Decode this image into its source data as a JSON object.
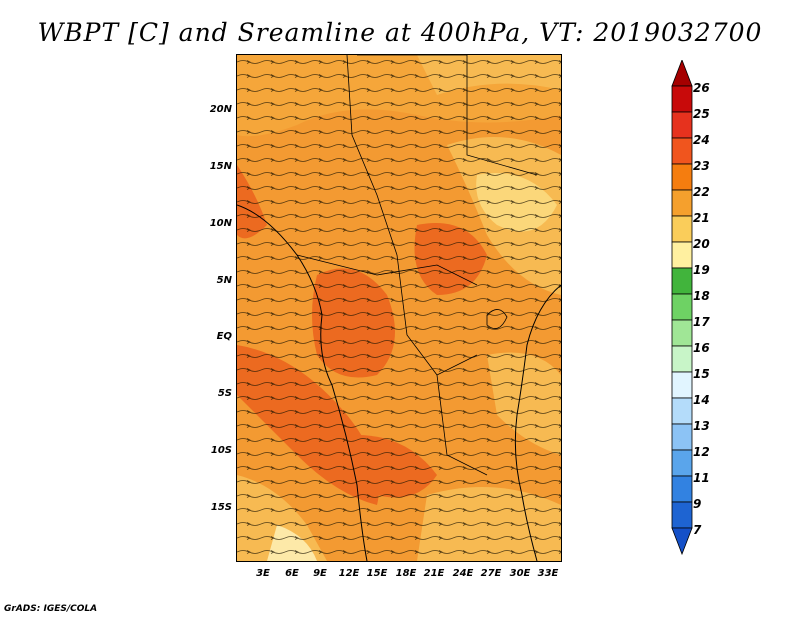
{
  "title": "WBPT [C] and Sreamline at 400hPa, VT: 2019032700",
  "credit": "GrADS: IGES/COLA",
  "lat_labels": [
    "20N",
    "15N",
    "10N",
    "5N",
    "EQ",
    "5S",
    "10S",
    "15S"
  ],
  "lon_labels": [
    "3E",
    "6E",
    "9E",
    "12E",
    "15E",
    "18E",
    "21E",
    "24E",
    "27E",
    "30E",
    "33E"
  ],
  "colorbar": {
    "labels": [
      "26",
      "25",
      "24",
      "23",
      "22",
      "21",
      "20",
      "19",
      "18",
      "17",
      "16",
      "15",
      "14",
      "13",
      "12",
      "11",
      "9",
      "7"
    ],
    "colors": [
      "#a50000",
      "#c80a0a",
      "#e6321e",
      "#f0551e",
      "#f57d0f",
      "#f5a02d",
      "#facd5a",
      "#fff0a0",
      "#41b43c",
      "#6ed264",
      "#a0e696",
      "#c8f5c8",
      "#e1f5ff",
      "#b4dcfa",
      "#8cc3f5",
      "#5aa5eb",
      "#3282e1",
      "#1e64d2",
      "#1450c8"
    ]
  },
  "field_colors": {
    "deep": "#ec6a20",
    "mid": "#f39a32",
    "light": "#f7ba52",
    "pale": "#fbd77a",
    "cream": "#fde9a8"
  }
}
